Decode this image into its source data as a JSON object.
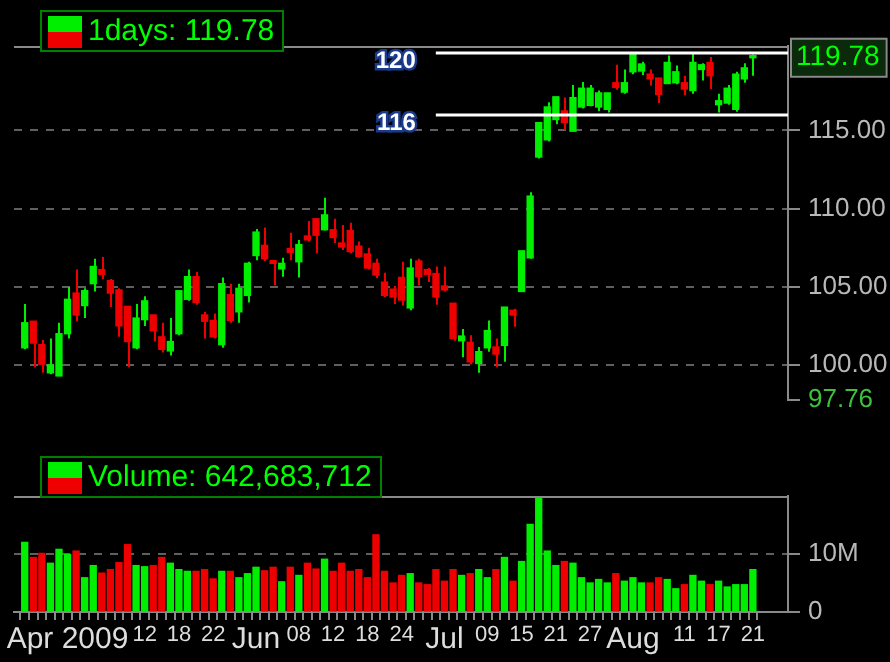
{
  "chart_data": [
    {
      "type": "candlestick",
      "title": "1days: 119.78",
      "ohlc": [
        [
          101.1,
          103.9,
          101.0,
          102.7
        ],
        [
          102.8,
          102.8,
          99.85,
          101.4
        ],
        [
          101.3,
          101.6,
          99.5,
          100.05
        ],
        [
          99.5,
          101.7,
          99.4,
          100.0
        ],
        [
          99.3,
          102.7,
          99.3,
          102.0
        ],
        [
          102.0,
          105.0,
          101.7,
          104.2
        ],
        [
          104.6,
          106.1,
          102.8,
          103.2
        ],
        [
          103.8,
          104.9,
          103.0,
          104.75
        ],
        [
          105.2,
          106.8,
          104.7,
          106.3
        ],
        [
          106.1,
          106.9,
          105.5,
          105.8
        ],
        [
          105.4,
          105.5,
          103.7,
          104.6
        ],
        [
          104.8,
          104.9,
          101.8,
          102.5
        ],
        [
          103.75,
          103.75,
          99.85,
          101.5
        ],
        [
          101.1,
          103.9,
          101.0,
          103.0
        ],
        [
          102.9,
          104.4,
          102.5,
          104.1
        ],
        [
          103.2,
          103.2,
          101.5,
          102.2
        ],
        [
          101.8,
          102.7,
          100.8,
          101.0
        ],
        [
          100.9,
          103.0,
          100.6,
          101.5
        ],
        [
          102.0,
          104.75,
          101.9,
          104.75
        ],
        [
          104.2,
          106.1,
          104.1,
          105.65
        ],
        [
          105.65,
          105.95,
          103.85,
          104.0
        ],
        [
          103.2,
          103.4,
          101.7,
          102.8
        ],
        [
          102.85,
          103.3,
          101.7,
          101.8
        ],
        [
          101.3,
          105.6,
          101.1,
          105.2
        ],
        [
          104.5,
          105.2,
          102.7,
          102.85
        ],
        [
          103.4,
          105.2,
          102.7,
          104.9
        ],
        [
          104.45,
          106.6,
          104.0,
          106.5
        ],
        [
          107.0,
          108.7,
          106.7,
          108.5
        ],
        [
          107.65,
          108.8,
          106.65,
          106.8
        ],
        [
          106.67,
          106.67,
          105.1,
          106.5
        ],
        [
          106.15,
          106.85,
          105.65,
          106.5
        ],
        [
          107.45,
          108.45,
          106.7,
          107.2
        ],
        [
          106.6,
          108.0,
          105.6,
          107.7
        ],
        [
          108.25,
          109.2,
          107.9,
          108.0
        ],
        [
          109.35,
          109.35,
          107.15,
          108.3
        ],
        [
          108.65,
          110.7,
          108.6,
          109.6
        ],
        [
          108.65,
          109.35,
          107.8,
          108.15
        ],
        [
          107.8,
          108.95,
          107.35,
          107.55
        ],
        [
          108.6,
          109.1,
          107.15,
          107.25
        ],
        [
          107.6,
          107.9,
          106.85,
          106.95
        ],
        [
          107.1,
          107.5,
          106.1,
          106.2
        ],
        [
          106.5,
          106.8,
          105.55,
          105.75
        ],
        [
          105.3,
          105.9,
          104.35,
          104.45
        ],
        [
          104.85,
          105.05,
          103.9,
          104.35
        ],
        [
          105.6,
          106.6,
          103.8,
          104.15
        ],
        [
          103.65,
          106.8,
          103.5,
          106.2
        ],
        [
          106.65,
          106.8,
          105.1,
          105.65
        ],
        [
          106.1,
          106.2,
          105.3,
          105.8
        ],
        [
          105.85,
          106.3,
          103.85,
          104.35
        ],
        [
          105.05,
          106.3,
          104.7,
          104.8
        ],
        [
          103.95,
          103.95,
          101.55,
          101.7
        ],
        [
          101.55,
          102.3,
          100.5,
          101.85
        ],
        [
          101.45,
          101.9,
          100.05,
          100.2
        ],
        [
          100.1,
          101.15,
          99.5,
          100.85
        ],
        [
          101.1,
          102.85,
          100.85,
          102.2
        ],
        [
          101.15,
          101.7,
          99.85,
          100.7
        ],
        [
          101.25,
          103.7,
          100.2,
          103.7
        ],
        [
          103.5,
          103.6,
          102.45,
          103.2
        ],
        [
          104.7,
          107.3,
          104.7,
          107.3
        ],
        [
          106.85,
          111.05,
          106.8,
          110.8
        ],
        [
          113.3,
          115.5,
          113.2,
          115.5
        ],
        [
          114.4,
          116.8,
          114.3,
          116.5
        ],
        [
          115.7,
          117.15,
          115.4,
          117.15
        ],
        [
          116.25,
          117.1,
          115.05,
          115.5
        ],
        [
          114.95,
          117.9,
          114.95,
          117.1
        ],
        [
          116.5,
          118.1,
          116.4,
          117.7
        ],
        [
          116.6,
          117.9,
          116.55,
          117.7
        ],
        [
          116.5,
          117.55,
          116.25,
          117.4
        ],
        [
          116.35,
          117.4,
          116.15,
          117.4
        ],
        [
          118.05,
          119.2,
          117.6,
          117.75
        ],
        [
          117.45,
          118.9,
          117.35,
          118.05
        ],
        [
          118.75,
          119.9,
          118.6,
          119.9
        ],
        [
          118.8,
          119.4,
          118.55,
          119.25
        ],
        [
          118.6,
          118.9,
          117.85,
          118.3
        ],
        [
          118.35,
          118.35,
          116.75,
          117.3
        ],
        [
          118.0,
          119.8,
          118.0,
          119.35
        ],
        [
          118.05,
          119.15,
          117.95,
          118.75
        ],
        [
          118.05,
          118.5,
          117.25,
          117.65
        ],
        [
          117.55,
          119.9,
          117.35,
          119.35
        ],
        [
          118.9,
          119.3,
          118.2,
          119.2
        ],
        [
          119.35,
          119.7,
          117.65,
          118.5
        ],
        [
          116.65,
          117.35,
          116.15,
          116.9
        ],
        [
          116.75,
          117.9,
          116.65,
          117.7
        ],
        [
          116.35,
          118.75,
          116.2,
          118.6
        ],
        [
          118.3,
          119.3,
          118.05,
          119.0
        ],
        [
          119.65,
          119.85,
          118.5,
          119.78
        ]
      ],
      "colors": [
        "#00ee00",
        "#ee0000",
        "#ee0000",
        "#00ee00",
        "#00ee00",
        "#00ee00",
        "#ee0000",
        "#00ee00",
        "#00ee00",
        "#ee0000",
        "#ee0000",
        "#ee0000",
        "#ee0000",
        "#00ee00",
        "#00ee00",
        "#ee0000",
        "#ee0000",
        "#00ee00",
        "#00ee00",
        "#00ee00",
        "#ee0000",
        "#ee0000",
        "#ee0000",
        "#00ee00",
        "#ee0000",
        "#00ee00",
        "#00ee00",
        "#00ee00",
        "#ee0000",
        "#ee0000",
        "#00ee00",
        "#ee0000",
        "#00ee00",
        "#ee0000",
        "#ee0000",
        "#00ee00",
        "#ee0000",
        "#ee0000",
        "#ee0000",
        "#ee0000",
        "#ee0000",
        "#ee0000",
        "#ee0000",
        "#ee0000",
        "#ee0000",
        "#00ee00",
        "#ee0000",
        "#ee0000",
        "#ee0000",
        "#ee0000",
        "#ee0000",
        "#00ee00",
        "#ee0000",
        "#00ee00",
        "#00ee00",
        "#ee0000",
        "#00ee00",
        "#ee0000",
        "#00ee00",
        "#00ee00",
        "#00ee00",
        "#00ee00",
        "#00ee00",
        "#ee0000",
        "#00ee00",
        "#00ee00",
        "#00ee00",
        "#00ee00",
        "#00ee00",
        "#ee0000",
        "#00ee00",
        "#00ee00",
        "#00ee00",
        "#ee0000",
        "#ee0000",
        "#00ee00",
        "#00ee00",
        "#ee0000",
        "#00ee00",
        "#00ee00",
        "#ee0000",
        "#00ee00",
        "#00ee00",
        "#00ee00",
        "#00ee00",
        "#00ee00"
      ],
      "ylim": [
        97.76,
        120.4
      ],
      "yticks": [
        {
          "value": 97.76,
          "label": "97.76"
        },
        {
          "value": 100,
          "label": "100.00"
        },
        {
          "value": 105,
          "label": "105.00"
        },
        {
          "value": 110,
          "label": "110.00"
        },
        {
          "value": 115,
          "label": "115.00"
        }
      ],
      "grid": "y",
      "tick_labels": "y",
      "ref_lines": [
        {
          "axis": "y",
          "value": 120,
          "label": "120",
          "color": "#ffffff"
        },
        {
          "axis": "y",
          "value": 116,
          "label": "116",
          "color": "#ffffff"
        }
      ],
      "annotations": [
        "119.78"
      ]
    },
    {
      "type": "bar",
      "title": "Volume: 642,683,712",
      "categories": [
        null,
        null,
        null,
        null,
        null,
        "Apr 2009",
        null,
        null,
        null,
        null,
        null,
        null,
        null,
        null,
        "12",
        null,
        null,
        null,
        "18",
        null,
        null,
        null,
        "22",
        null,
        null,
        null,
        null,
        "Jun",
        null,
        null,
        null,
        null,
        "08",
        null,
        null,
        null,
        "12",
        null,
        null,
        null,
        "18",
        null,
        null,
        null,
        "24",
        null,
        null,
        null,
        null,
        "Jul",
        null,
        null,
        null,
        null,
        "09",
        null,
        null,
        null,
        "15",
        null,
        null,
        null,
        "21",
        null,
        null,
        null,
        "27",
        null,
        null,
        null,
        null,
        "Aug",
        null,
        null,
        null,
        null,
        null,
        "11",
        null,
        null,
        null,
        "17",
        null,
        null,
        null,
        "21"
      ],
      "values": [
        12000000,
        9400000,
        10100000,
        8400000,
        10800000,
        9900000,
        10500000,
        5900000,
        8000000,
        6700000,
        7300000,
        8500000,
        11600000,
        8000000,
        7800000,
        8000000,
        9400000,
        8400000,
        7300000,
        7000000,
        7000000,
        7300000,
        5700000,
        7000000,
        7000000,
        5900000,
        6600000,
        7700000,
        7100000,
        7700000,
        5200000,
        7700000,
        6300000,
        8400000,
        7400000,
        9100000,
        7000000,
        8400000,
        7000000,
        7300000,
        5900000,
        13300000,
        7000000,
        5000000,
        6300000,
        6600000,
        5000000,
        4700000,
        7300000,
        5300000,
        7300000,
        6300000,
        6600000,
        7300000,
        5900000,
        7300000,
        9400000,
        5300000,
        8700000,
        15100000,
        19900000,
        10500000,
        8000000,
        8700000,
        8400000,
        5900000,
        5000000,
        5600000,
        5000000,
        6600000,
        5300000,
        5900000,
        5000000,
        5000000,
        5900000,
        5600000,
        4000000,
        4700000,
        6300000,
        5300000,
        4700000,
        5300000,
        4300000,
        4700000,
        4700000,
        7300000
      ],
      "colors": [
        "#00ee00",
        "#ee0000",
        "#ee0000",
        "#00ee00",
        "#00ee00",
        "#00ee00",
        "#ee0000",
        "#00ee00",
        "#00ee00",
        "#ee0000",
        "#ee0000",
        "#ee0000",
        "#ee0000",
        "#00ee00",
        "#00ee00",
        "#ee0000",
        "#ee0000",
        "#00ee00",
        "#00ee00",
        "#00ee00",
        "#ee0000",
        "#ee0000",
        "#ee0000",
        "#00ee00",
        "#ee0000",
        "#00ee00",
        "#00ee00",
        "#00ee00",
        "#ee0000",
        "#ee0000",
        "#00ee00",
        "#ee0000",
        "#00ee00",
        "#ee0000",
        "#ee0000",
        "#00ee00",
        "#ee0000",
        "#ee0000",
        "#ee0000",
        "#ee0000",
        "#ee0000",
        "#ee0000",
        "#ee0000",
        "#ee0000",
        "#ee0000",
        "#00ee00",
        "#ee0000",
        "#ee0000",
        "#ee0000",
        "#ee0000",
        "#ee0000",
        "#00ee00",
        "#ee0000",
        "#00ee00",
        "#00ee00",
        "#ee0000",
        "#00ee00",
        "#ee0000",
        "#00ee00",
        "#00ee00",
        "#00ee00",
        "#00ee00",
        "#00ee00",
        "#ee0000",
        "#00ee00",
        "#00ee00",
        "#00ee00",
        "#00ee00",
        "#00ee00",
        "#ee0000",
        "#00ee00",
        "#00ee00",
        "#00ee00",
        "#ee0000",
        "#ee0000",
        "#00ee00",
        "#00ee00",
        "#ee0000",
        "#00ee00",
        "#00ee00",
        "#ee0000",
        "#00ee00",
        "#00ee00",
        "#00ee00",
        "#00ee00",
        "#00ee00"
      ],
      "ylim": [
        0,
        20000000
      ],
      "yticks": [
        {
          "value": 0,
          "label": "0"
        },
        {
          "value": 10000000,
          "label": "10M"
        }
      ],
      "grid": "y"
    }
  ]
}
